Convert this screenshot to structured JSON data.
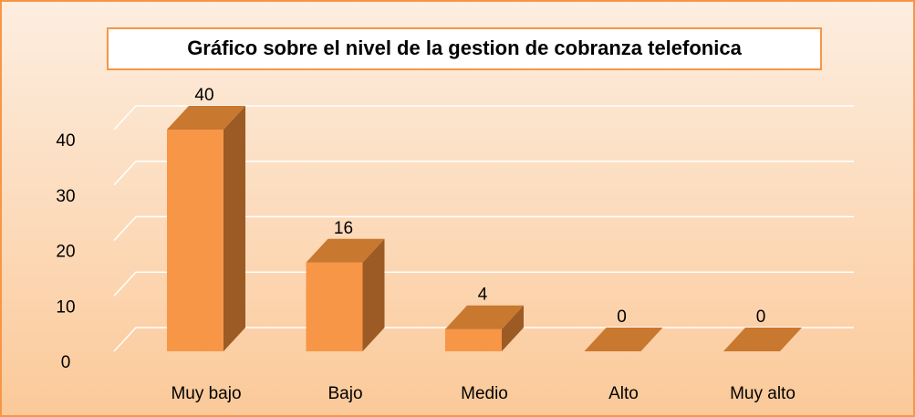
{
  "chart_data": {
    "type": "bar",
    "title": "Gráfico sobre el nivel de la gestion de cobranza telefonica",
    "categories": [
      "Muy bajo",
      "Bajo",
      "Medio",
      "Alto",
      "Muy alto"
    ],
    "values": [
      40,
      16,
      4,
      0,
      0
    ],
    "color": "#f79646",
    "ylim": [
      0,
      40
    ],
    "yticks": [
      0,
      10,
      20,
      30,
      40
    ],
    "grid": true
  }
}
